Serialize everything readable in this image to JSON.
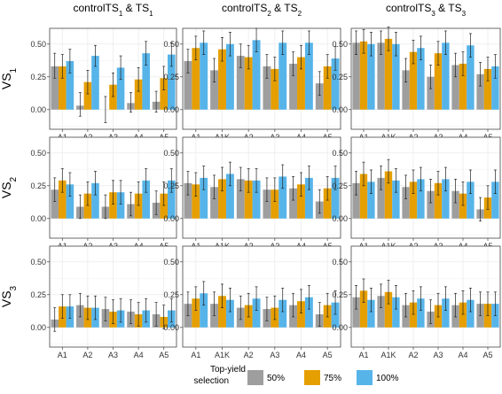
{
  "chart_data": {
    "type": "bar",
    "col_titles": [
      {
        "main": "controlTS",
        "s1": "1",
        "mid": " & TS",
        "s2": "1"
      },
      {
        "main": "controlTS",
        "s1": "2",
        "mid": " & TS",
        "s2": "2"
      },
      {
        "main": "controlTS",
        "s1": "3",
        "mid": " & TS",
        "s2": "3"
      }
    ],
    "row_labels": [
      {
        "main": "VS",
        "sub": "1"
      },
      {
        "main": "VS",
        "sub": "2"
      },
      {
        "main": "VS",
        "sub": "3"
      }
    ],
    "ylim": [
      -0.15,
      0.62
    ],
    "yticks": [
      0.0,
      0.25,
      0.5
    ],
    "ytick_labels": [
      "0.00",
      "0.25",
      "0.50"
    ],
    "grid": true,
    "colors": {
      "50%": "#9e9e9e",
      "75%": "#e69f00",
      "100%": "#56b4e9"
    },
    "legend": {
      "title_line1": "Top-yield",
      "title_line2": "selection",
      "position": "bottom",
      "entries": [
        "50%",
        "75%",
        "100%"
      ]
    },
    "panels": [
      [
        {
          "categories": [
            "A1",
            "A2",
            "A3",
            "A4",
            "A5"
          ],
          "series": [
            {
              "name": "50%",
              "values": [
                0.33,
                0.03,
                0.0,
                0.05,
                0.06
              ],
              "lo": [
                0.24,
                -0.05,
                -0.1,
                -0.02,
                -0.02
              ],
              "hi": [
                0.43,
                0.13,
                0.1,
                0.13,
                0.14
              ]
            },
            {
              "name": "75%",
              "values": [
                0.33,
                0.21,
                0.19,
                0.23,
                0.24
              ],
              "lo": [
                0.24,
                0.12,
                0.1,
                0.14,
                0.15
              ],
              "hi": [
                0.42,
                0.3,
                0.28,
                0.32,
                0.33
              ]
            },
            {
              "name": "100%",
              "values": [
                0.37,
                0.41,
                0.32,
                0.43,
                0.42
              ],
              "lo": [
                0.28,
                0.33,
                0.23,
                0.34,
                0.33
              ],
              "hi": [
                0.46,
                0.49,
                0.41,
                0.52,
                0.51
              ]
            }
          ]
        },
        {
          "categories": [
            "A1",
            "A1K",
            "A2",
            "A3",
            "A4",
            "A5"
          ],
          "series": [
            {
              "name": "50%",
              "values": [
                0.37,
                0.3,
                0.41,
                0.33,
                0.35,
                0.2
              ],
              "lo": [
                0.28,
                0.21,
                0.32,
                0.24,
                0.26,
                0.11
              ],
              "hi": [
                0.46,
                0.39,
                0.5,
                0.42,
                0.44,
                0.29
              ]
            },
            {
              "name": "75%",
              "values": [
                0.47,
                0.46,
                0.4,
                0.31,
                0.4,
                0.33
              ],
              "lo": [
                0.38,
                0.37,
                0.31,
                0.22,
                0.31,
                0.24
              ],
              "hi": [
                0.56,
                0.55,
                0.49,
                0.4,
                0.49,
                0.42
              ]
            },
            {
              "name": "100%",
              "values": [
                0.51,
                0.5,
                0.53,
                0.51,
                0.51,
                0.39
              ],
              "lo": [
                0.42,
                0.41,
                0.44,
                0.42,
                0.42,
                0.3
              ],
              "hi": [
                0.6,
                0.59,
                0.62,
                0.6,
                0.6,
                0.48
              ]
            }
          ]
        },
        {
          "categories": [
            "A1",
            "A1K",
            "A2",
            "A3",
            "A4",
            "A5"
          ],
          "series": [
            {
              "name": "50%",
              "values": [
                0.51,
                0.51,
                0.3,
                0.25,
                0.34,
                0.27
              ],
              "lo": [
                0.42,
                0.42,
                0.21,
                0.16,
                0.25,
                0.18
              ],
              "hi": [
                0.6,
                0.6,
                0.39,
                0.34,
                0.43,
                0.36
              ]
            },
            {
              "name": "75%",
              "values": [
                0.52,
                0.54,
                0.44,
                0.43,
                0.35,
                0.31
              ],
              "lo": [
                0.43,
                0.45,
                0.35,
                0.34,
                0.26,
                0.22
              ],
              "hi": [
                0.61,
                0.63,
                0.53,
                0.52,
                0.44,
                0.4
              ]
            },
            {
              "name": "100%",
              "values": [
                0.5,
                0.5,
                0.47,
                0.51,
                0.49,
                0.33
              ],
              "lo": [
                0.41,
                0.41,
                0.38,
                0.42,
                0.4,
                0.24
              ],
              "hi": [
                0.59,
                0.59,
                0.56,
                0.6,
                0.58,
                0.42
              ]
            }
          ]
        }
      ],
      [
        {
          "categories": [
            "A1",
            "A2",
            "A3",
            "A4",
            "A5"
          ],
          "series": [
            {
              "name": "50%",
              "values": [
                0.22,
                0.09,
                0.09,
                0.11,
                0.12
              ],
              "lo": [
                0.13,
                0.0,
                0.0,
                0.02,
                0.03
              ],
              "hi": [
                0.31,
                0.18,
                0.18,
                0.2,
                0.21
              ]
            },
            {
              "name": "75%",
              "values": [
                0.29,
                0.19,
                0.2,
                0.19,
                0.19
              ],
              "lo": [
                0.2,
                0.1,
                0.11,
                0.1,
                0.1
              ],
              "hi": [
                0.38,
                0.28,
                0.29,
                0.28,
                0.28
              ]
            },
            {
              "name": "100%",
              "values": [
                0.26,
                0.27,
                0.2,
                0.29,
                0.29
              ],
              "lo": [
                0.17,
                0.18,
                0.11,
                0.2,
                0.2
              ],
              "hi": [
                0.35,
                0.36,
                0.29,
                0.38,
                0.38
              ]
            }
          ]
        },
        {
          "categories": [
            "A1",
            "A1K",
            "A2",
            "A3",
            "A4",
            "A5"
          ],
          "series": [
            {
              "name": "50%",
              "values": [
                0.27,
                0.24,
                0.3,
                0.22,
                0.23,
                0.13
              ],
              "lo": [
                0.18,
                0.15,
                0.21,
                0.13,
                0.14,
                0.04
              ],
              "hi": [
                0.36,
                0.33,
                0.39,
                0.31,
                0.32,
                0.22
              ]
            },
            {
              "name": "75%",
              "values": [
                0.26,
                0.3,
                0.29,
                0.22,
                0.26,
                0.23
              ],
              "lo": [
                0.17,
                0.21,
                0.2,
                0.13,
                0.17,
                0.14
              ],
              "hi": [
                0.35,
                0.39,
                0.38,
                0.31,
                0.35,
                0.32
              ]
            },
            {
              "name": "100%",
              "values": [
                0.31,
                0.34,
                0.29,
                0.32,
                0.31,
                0.31
              ],
              "lo": [
                0.22,
                0.25,
                0.2,
                0.23,
                0.22,
                0.22
              ],
              "hi": [
                0.4,
                0.43,
                0.38,
                0.41,
                0.4,
                0.4
              ]
            }
          ]
        },
        {
          "categories": [
            "A1",
            "A1K",
            "A2",
            "A3",
            "A4",
            "A5"
          ],
          "series": [
            {
              "name": "50%",
              "values": [
                0.27,
                0.31,
                0.24,
                0.21,
                0.21,
                0.07
              ],
              "lo": [
                0.18,
                0.22,
                0.15,
                0.12,
                0.12,
                -0.02
              ],
              "hi": [
                0.36,
                0.4,
                0.33,
                0.3,
                0.3,
                0.16
              ]
            },
            {
              "name": "75%",
              "values": [
                0.34,
                0.36,
                0.28,
                0.27,
                0.19,
                0.16
              ],
              "lo": [
                0.25,
                0.27,
                0.19,
                0.18,
                0.1,
                0.07
              ],
              "hi": [
                0.43,
                0.45,
                0.37,
                0.36,
                0.28,
                0.25
              ]
            },
            {
              "name": "100%",
              "values": [
                0.28,
                0.29,
                0.3,
                0.3,
                0.28,
                0.28
              ],
              "lo": [
                0.19,
                0.2,
                0.21,
                0.21,
                0.19,
                0.19
              ],
              "hi": [
                0.37,
                0.38,
                0.39,
                0.39,
                0.37,
                0.37
              ]
            }
          ]
        }
      ],
      [
        {
          "categories": [
            "A1",
            "A2",
            "A3",
            "A4",
            "A5"
          ],
          "series": [
            {
              "name": "50%",
              "values": [
                0.06,
                0.17,
                0.14,
                0.12,
                0.1
              ],
              "lo": [
                -0.03,
                0.08,
                0.05,
                0.03,
                0.01
              ],
              "hi": [
                0.15,
                0.26,
                0.23,
                0.21,
                0.19
              ]
            },
            {
              "name": "75%",
              "values": [
                0.16,
                0.15,
                0.12,
                0.1,
                0.08
              ],
              "lo": [
                0.07,
                0.06,
                0.03,
                0.01,
                -0.01
              ],
              "hi": [
                0.25,
                0.24,
                0.21,
                0.19,
                0.17
              ]
            },
            {
              "name": "100%",
              "values": [
                0.16,
                0.15,
                0.13,
                0.13,
                0.13
              ],
              "lo": [
                0.07,
                0.06,
                0.04,
                0.04,
                0.04
              ],
              "hi": [
                0.25,
                0.24,
                0.22,
                0.22,
                0.22
              ]
            }
          ]
        },
        {
          "categories": [
            "A1",
            "A1K",
            "A2",
            "A3",
            "A4",
            "A5"
          ],
          "series": [
            {
              "name": "50%",
              "values": [
                0.18,
                0.18,
                0.15,
                0.14,
                0.17,
                0.1
              ],
              "lo": [
                0.09,
                0.09,
                0.06,
                0.05,
                0.08,
                0.01
              ],
              "hi": [
                0.27,
                0.27,
                0.24,
                0.23,
                0.26,
                0.19
              ]
            },
            {
              "name": "75%",
              "values": [
                0.22,
                0.24,
                0.17,
                0.15,
                0.2,
                0.17
              ],
              "lo": [
                0.13,
                0.15,
                0.08,
                0.06,
                0.11,
                0.08
              ],
              "hi": [
                0.31,
                0.33,
                0.26,
                0.24,
                0.29,
                0.26
              ]
            },
            {
              "name": "100%",
              "values": [
                0.26,
                0.21,
                0.22,
                0.21,
                0.23,
                0.19
              ],
              "lo": [
                0.17,
                0.12,
                0.13,
                0.12,
                0.14,
                0.1
              ],
              "hi": [
                0.35,
                0.3,
                0.31,
                0.3,
                0.32,
                0.28
              ]
            }
          ]
        },
        {
          "categories": [
            "A1",
            "A1K",
            "A2",
            "A3",
            "A4",
            "A5"
          ],
          "series": [
            {
              "name": "50%",
              "values": [
                0.23,
                0.24,
                0.17,
                0.12,
                0.17,
                0.18
              ],
              "lo": [
                0.14,
                0.15,
                0.08,
                0.03,
                0.08,
                0.09
              ],
              "hi": [
                0.32,
                0.33,
                0.26,
                0.21,
                0.26,
                0.27
              ]
            },
            {
              "name": "75%",
              "values": [
                0.28,
                0.27,
                0.19,
                0.17,
                0.19,
                0.18
              ],
              "lo": [
                0.19,
                0.18,
                0.1,
                0.08,
                0.1,
                0.09
              ],
              "hi": [
                0.37,
                0.36,
                0.28,
                0.26,
                0.28,
                0.27
              ]
            },
            {
              "name": "100%",
              "values": [
                0.21,
                0.23,
                0.22,
                0.22,
                0.21,
                0.18
              ],
              "lo": [
                0.12,
                0.14,
                0.13,
                0.13,
                0.12,
                0.09
              ],
              "hi": [
                0.3,
                0.32,
                0.31,
                0.31,
                0.3,
                0.27
              ]
            }
          ]
        }
      ]
    ]
  }
}
